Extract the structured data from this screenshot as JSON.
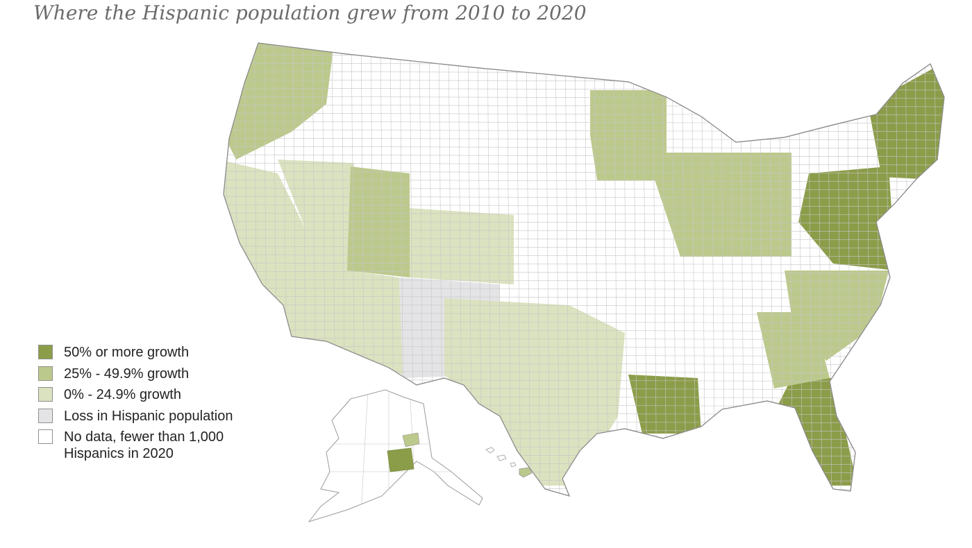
{
  "title": "Where the Hispanic population grew from 2010 to 2020",
  "legend": {
    "items": [
      {
        "key": "high",
        "label": "50% or more growth",
        "color": "#8c9d4a"
      },
      {
        "key": "mid",
        "label": "25% - 49.9% growth",
        "color": "#bcc98c"
      },
      {
        "key": "low",
        "label": "0% - 24.9% growth",
        "color": "#dbe2bf"
      },
      {
        "key": "loss",
        "label": "Loss in Hispanic population",
        "color": "#e4e4e6"
      },
      {
        "key": "none",
        "label": [
          "No data, fewer than 1,000",
          "Hispanics in 2020"
        ],
        "color": "#ffffff"
      }
    ]
  },
  "map": {
    "region": "United States counties",
    "style": "choropleth",
    "boundary_color": "#9a9a9a",
    "regions": [
      {
        "name": "Pacific Northwest",
        "category": "mid"
      },
      {
        "name": "California",
        "category": "low"
      },
      {
        "name": "Nevada",
        "category": "low"
      },
      {
        "name": "Arizona",
        "category": "low"
      },
      {
        "name": "Utah",
        "category": "mid"
      },
      {
        "name": "Colorado",
        "category": "low"
      },
      {
        "name": "New Mexico",
        "category": "loss"
      },
      {
        "name": "Texas",
        "category": "low"
      },
      {
        "name": "Louisiana",
        "category": "high"
      },
      {
        "name": "Florida",
        "category": "high"
      },
      {
        "name": "Georgia",
        "category": "mid"
      },
      {
        "name": "Carolinas",
        "category": "mid"
      },
      {
        "name": "Mid-Atlantic",
        "category": "high"
      },
      {
        "name": "New England",
        "category": "high"
      },
      {
        "name": "Great Lakes",
        "category": "mid"
      },
      {
        "name": "Minnesota",
        "category": "mid"
      },
      {
        "name": "Dakotas",
        "category": "none"
      },
      {
        "name": "Alaska",
        "category": "none"
      }
    ]
  }
}
